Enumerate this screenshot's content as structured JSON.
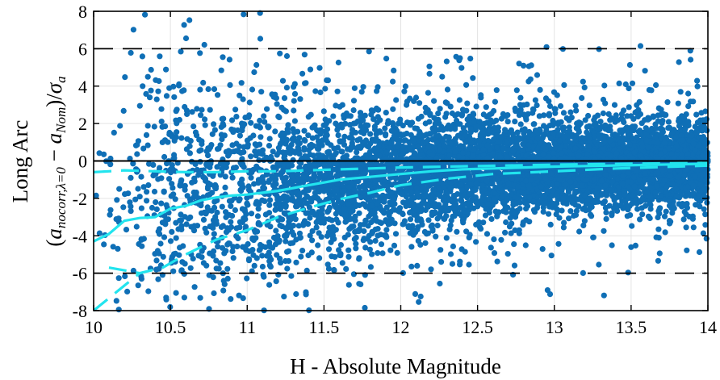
{
  "chart_data": {
    "type": "scatter",
    "title": "",
    "xlabel": "H - Absolute Magnitude",
    "ylabel_line1": "Long Arc",
    "ylabel_line2": "(a_{nocorr,λ=0} − a_{Nom})/σ_a",
    "ylabel_parts": {
      "open": "(",
      "a1": "a",
      "sub1": "nocorr,λ=0",
      "minus": " − ",
      "a2": "a",
      "sub2": "Nom",
      "close": ")/",
      "sigma": "σ",
      "sub3": "a"
    },
    "xlim": [
      10,
      14
    ],
    "ylim": [
      -8,
      8
    ],
    "x_ticks": [
      10,
      10.5,
      11,
      11.5,
      12,
      12.5,
      13,
      13.5,
      14
    ],
    "x_tick_labels": [
      "10",
      "10.5",
      "11",
      "11.5",
      "12",
      "12.5",
      "13",
      "13.5",
      "14"
    ],
    "y_ticks": [
      -8,
      -6,
      -4,
      -2,
      0,
      2,
      4,
      6,
      8
    ],
    "y_tick_labels": [
      "-8",
      "-6",
      "-4",
      "-2",
      "0",
      "2",
      "4",
      "6",
      "8"
    ],
    "grid": true,
    "reference_lines": {
      "zero": 0,
      "dashed": [
        6,
        -6
      ]
    },
    "colors": {
      "points": "#0f6fb6",
      "median": "#22e4ee",
      "band": "#22e4ee",
      "axis": "#000000",
      "grid": "#e3e3e3"
    },
    "scatter": {
      "n_points": 6500,
      "x_range": [
        10,
        14
      ],
      "y_spread": {
        "H": [
          10,
          10.5,
          11,
          11.5,
          12,
          12.5,
          13,
          13.5,
          14
        ],
        "sigma": [
          3.3,
          3.1,
          2.7,
          2.0,
          1.6,
          1.3,
          1.15,
          1.05,
          1.0
        ]
      },
      "y_center": {
        "H": [
          10,
          10.5,
          11,
          11.5,
          12,
          12.5,
          13,
          13.5,
          14
        ],
        "value": [
          -2.0,
          -1.8,
          -1.4,
          -1.0,
          -0.6,
          -0.4,
          -0.3,
          -0.2,
          -0.15
        ]
      }
    },
    "series": [
      {
        "style": "solid",
        "x": [
          10.0,
          10.1,
          10.2,
          10.3,
          10.4,
          10.5,
          10.6,
          10.7,
          10.8,
          10.9,
          11.0,
          11.1,
          11.2,
          11.3,
          11.4,
          11.5,
          11.6,
          11.8,
          12.0,
          12.2,
          12.4,
          12.6,
          12.8,
          13.0,
          13.2,
          13.4,
          13.6,
          13.8,
          14.0
        ],
        "y": [
          -4.3,
          -3.9,
          -3.2,
          -3.05,
          -3.0,
          -2.55,
          -2.4,
          -2.1,
          -1.95,
          -1.85,
          -1.8,
          -1.7,
          -1.6,
          -1.45,
          -1.3,
          -1.15,
          -1.0,
          -0.85,
          -0.7,
          -0.55,
          -0.45,
          -0.4,
          -0.35,
          -0.3,
          -0.27,
          -0.24,
          -0.21,
          -0.18,
          -0.15
        ]
      },
      {
        "style": "dashed",
        "x": [
          10.0,
          10.1,
          10.2,
          10.4,
          10.6,
          10.8,
          11.0,
          11.2,
          11.4,
          11.6,
          11.8,
          12.0,
          12.2,
          12.5,
          12.8,
          13.0,
          13.3,
          13.6,
          14.0
        ],
        "y": [
          -0.6,
          -0.55,
          -0.5,
          -0.55,
          -0.6,
          -0.6,
          -0.55,
          -0.55,
          -0.5,
          -0.45,
          -0.4,
          -0.35,
          -0.32,
          -0.27,
          -0.23,
          -0.2,
          -0.17,
          -0.14,
          -0.1
        ]
      },
      {
        "style": "dashed",
        "x": [
          10.0,
          10.15,
          10.3,
          10.45,
          10.6,
          10.8,
          11.0,
          11.2,
          11.4,
          11.6,
          11.8,
          12.0,
          12.3,
          12.6,
          13.0,
          13.4,
          14.0
        ],
        "y": [
          -8.0,
          -7.0,
          -6.0,
          -5.7,
          -5.0,
          -4.2,
          -3.7,
          -3.0,
          -2.5,
          -2.05,
          -1.7,
          -1.3,
          -0.95,
          -0.7,
          -0.55,
          -0.4,
          -0.25
        ]
      },
      {
        "style": "dashed",
        "x": [
          10.1,
          10.2,
          10.3
        ],
        "y": [
          -5.7,
          -5.85,
          -6.0
        ]
      }
    ]
  }
}
